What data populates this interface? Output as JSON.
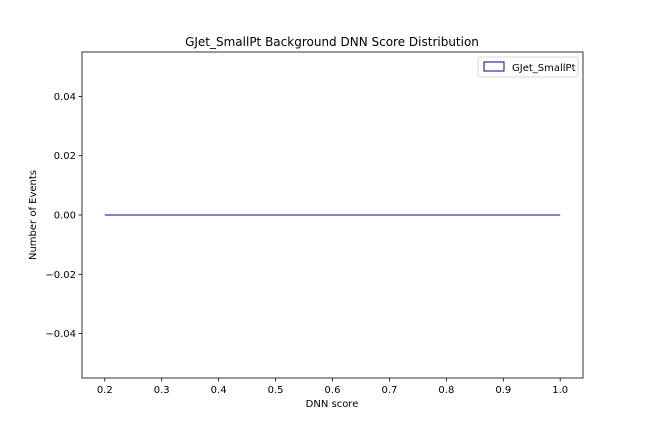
{
  "chart_data": {
    "type": "histogram-step",
    "title": "GJet_SmallPt Background DNN Score Distribution",
    "xlabel": "DNN score",
    "ylabel": "Number of Events",
    "xlim": [
      0.16,
      1.04
    ],
    "ylim": [
      -0.055,
      0.055
    ],
    "xticks": [
      "0.2",
      "0.3",
      "0.4",
      "0.5",
      "0.6",
      "0.7",
      "0.8",
      "0.9",
      "1.0"
    ],
    "yticks": [
      "−0.04",
      "−0.02",
      "0.00",
      "0.02",
      "0.04"
    ],
    "series": [
      {
        "name": "GJet_SmallPt",
        "color": "#00008b",
        "x": [
          0.2,
          1.0
        ],
        "y": [
          0,
          0
        ]
      }
    ],
    "legend": "top-right",
    "grid": false
  }
}
